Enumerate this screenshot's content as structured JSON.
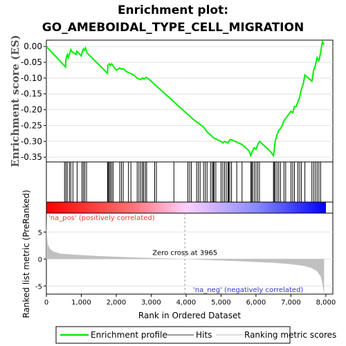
{
  "title_line1": "Enrichment plot:",
  "title_line2": "GO_AMEBOIDAL_TYPE_CELL_MIGRATION",
  "colors": {
    "enrichment": "#00ee00",
    "hits": "#000000",
    "metric": "#c0c0c0",
    "positive_text": "#ff3333",
    "negative_text": "#3333cc"
  },
  "chart_data": [
    {
      "type": "line",
      "name": "enrichment-profile",
      "ylabel": "Enrichment score (ES)",
      "xlim": [
        0,
        8200
      ],
      "ylim": [
        -0.365,
        0.02
      ],
      "yticks": [
        "0.00",
        "-0.05",
        "-0.10",
        "-0.15",
        "-0.20",
        "-0.25",
        "-0.30",
        "-0.35"
      ],
      "ytick_values": [
        0,
        -0.05,
        -0.1,
        -0.15,
        -0.2,
        -0.25,
        -0.3,
        -0.35
      ],
      "series": [
        {
          "name": "Enrichment profile",
          "x": [
            0,
            550,
            560,
            600,
            630,
            700,
            720,
            850,
            870,
            1000,
            1020,
            1060,
            1080,
            1120,
            1160,
            1750,
            1760,
            1800,
            1830,
            1870,
            1900,
            2000,
            2100,
            2150,
            2200,
            2300,
            2400,
            2500,
            2600,
            2700,
            2750,
            2800,
            2850,
            2900,
            3000,
            3100,
            3300,
            3600,
            3900,
            4200,
            4500,
            4600,
            4700,
            4800,
            4900,
            5000,
            5050,
            5100,
            5200,
            5250,
            5300,
            5400,
            5500,
            5600,
            5700,
            5800,
            5850,
            5900,
            5950,
            6000,
            6050,
            6100,
            6200,
            6300,
            6400,
            6500,
            6520,
            6550,
            6600,
            6650,
            6700,
            6750,
            6800,
            6900,
            7000,
            7050,
            7100,
            7150,
            7200,
            7250,
            7300,
            7350,
            7400,
            7500,
            7600,
            7650,
            7700,
            7750,
            7800,
            7850,
            7900,
            7950
          ],
          "y": [
            0.0,
            -0.065,
            -0.04,
            -0.025,
            -0.035,
            -0.01,
            -0.015,
            -0.025,
            -0.015,
            -0.03,
            -0.02,
            -0.008,
            -0.012,
            -0.005,
            -0.02,
            -0.085,
            -0.06,
            -0.055,
            -0.06,
            -0.055,
            -0.06,
            -0.075,
            -0.068,
            -0.072,
            -0.07,
            -0.08,
            -0.085,
            -0.09,
            -0.1,
            -0.105,
            -0.1,
            -0.103,
            -0.098,
            -0.1,
            -0.11,
            -0.12,
            -0.14,
            -0.17,
            -0.2,
            -0.23,
            -0.255,
            -0.27,
            -0.28,
            -0.29,
            -0.295,
            -0.3,
            -0.305,
            -0.3,
            -0.305,
            -0.295,
            -0.295,
            -0.3,
            -0.305,
            -0.31,
            -0.32,
            -0.33,
            -0.345,
            -0.33,
            -0.32,
            -0.325,
            -0.31,
            -0.3,
            -0.31,
            -0.32,
            -0.33,
            -0.345,
            -0.33,
            -0.3,
            -0.28,
            -0.265,
            -0.26,
            -0.25,
            -0.235,
            -0.22,
            -0.205,
            -0.21,
            -0.19,
            -0.19,
            -0.175,
            -0.16,
            -0.135,
            -0.12,
            -0.09,
            -0.1,
            -0.11,
            -0.075,
            -0.06,
            -0.035,
            -0.045,
            -0.02,
            0.015,
            0.005
          ]
        }
      ]
    },
    {
      "type": "scatter",
      "name": "hits",
      "xlim": [
        0,
        8200
      ],
      "hit_positions": [
        520,
        560,
        600,
        660,
        700,
        760,
        880,
        1020,
        1060,
        1100,
        1150,
        1750,
        1770,
        1800,
        1830,
        1870,
        1910,
        2100,
        2150,
        2200,
        2350,
        2420,
        2600,
        2650,
        2700,
        2750,
        2780,
        2830,
        2870,
        3100,
        3150,
        3650,
        4050,
        4100,
        4150,
        4300,
        4350,
        4400,
        4500,
        4550,
        4600,
        4700,
        4750,
        4780,
        4800,
        4850,
        5000,
        5050,
        5100,
        5150,
        5200,
        5220,
        5250,
        5300,
        5450,
        5600,
        5850,
        5880,
        5900,
        5950,
        6000,
        6050,
        6100,
        6500,
        6520,
        6550,
        6600,
        6650,
        6700,
        6800,
        6850,
        7000,
        7050,
        7100,
        7200,
        7250,
        7300,
        7400,
        7600,
        7650,
        7700,
        7750,
        7800,
        7850
      ]
    },
    {
      "type": "area",
      "name": "ranked-list-metric",
      "xlabel": "Rank in Ordered Dataset",
      "ylabel": "Ranked list metric (PreRanked)",
      "xlim": [
        0,
        8200
      ],
      "ylim": [
        -6.5,
        8.5
      ],
      "yticks": [
        "5",
        "0",
        "-5"
      ],
      "ytick_values": [
        5,
        0,
        -5
      ],
      "xticks": [
        "0",
        "1,000",
        "2,000",
        "3,000",
        "4,000",
        "5,000",
        "6,000",
        "7,000",
        "8,000"
      ],
      "xtick_values": [
        0,
        1000,
        2000,
        3000,
        4000,
        5000,
        6000,
        7000,
        8000
      ],
      "x": [
        0,
        10,
        40,
        100,
        200,
        400,
        800,
        1500,
        2500,
        3500,
        3965,
        4500,
        5500,
        6500,
        7000,
        7400,
        7600,
        7750,
        7850,
        7900,
        7930,
        7950
      ],
      "y": [
        7.8,
        5.0,
        2.8,
        1.9,
        1.4,
        1.0,
        0.8,
        0.55,
        0.3,
        0.1,
        0.0,
        -0.15,
        -0.4,
        -0.7,
        -0.95,
        -1.3,
        -1.7,
        -2.3,
        -3.2,
        -4.5,
        -5.8,
        -6.4
      ],
      "zero_cross": 3965,
      "zero_cross_label": "Zero cross at 3965",
      "positive_label": "'na_pos' (positively correlated)",
      "negative_label": "'na_neg' (negatively correlated)"
    }
  ],
  "legend": [
    {
      "label": "Enrichment profile"
    },
    {
      "label": "Hits"
    },
    {
      "label": "Ranking metric scores"
    }
  ]
}
